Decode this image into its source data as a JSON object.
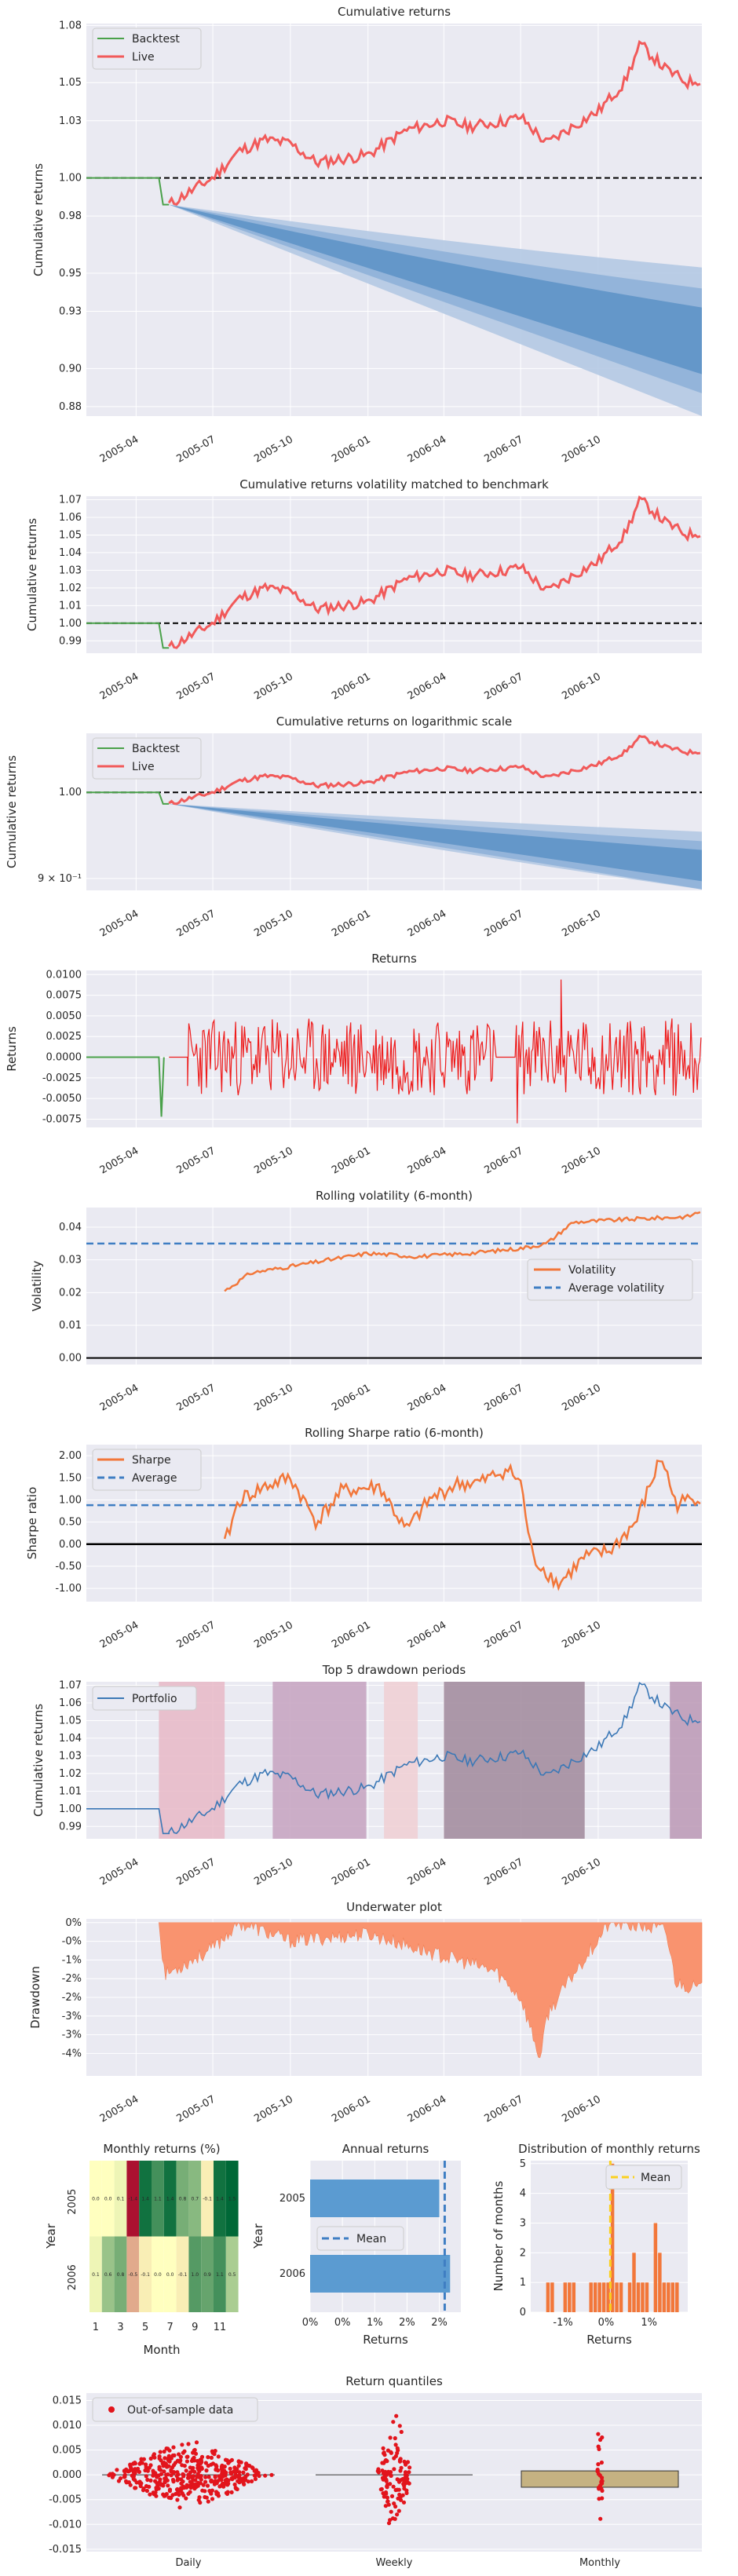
{
  "colors": {
    "axes_bg": "#eaeaf2",
    "grid": "#ffffff",
    "backtest": "#4aa14a",
    "live": "#f15a5a",
    "cone": "#4b86c0",
    "returns": "#ee1c1c",
    "orange": "#f2773a",
    "blue_dash": "#3f7ec3",
    "portfolio": "#3b78b6",
    "underwater": "#f9936f",
    "annual_bar": "#5b9bd1",
    "mean_gold": "#fbd020",
    "quantile_box": "#c5b282",
    "quantile_dots": "#e2141c"
  },
  "date_ticks": [
    "2005-04",
    "2005-07",
    "2005-10",
    "2006-01",
    "2006-04",
    "2006-07",
    "2006-10"
  ],
  "chart_data": [
    {
      "id": "cum",
      "type": "line",
      "title": "Cumulative returns",
      "ylabel": "Cumulative returns",
      "y_ticks": [
        "0.88",
        "0.90",
        "0.93",
        "0.95",
        "0.98",
        "1.00",
        "1.03",
        "1.05",
        "1.08"
      ],
      "ylim": [
        0.875,
        1.081
      ],
      "legend": [
        "Backtest",
        "Live"
      ],
      "legend_loc": "upper-left",
      "series": [
        {
          "name": "Backtest",
          "x": [
            "2005-02-01",
            "2005-04-28",
            "2005-05-03",
            "2005-05-10"
          ],
          "values": [
            1.0,
            1.0,
            0.986,
            0.986
          ]
        },
        {
          "name": "Live",
          "x": [
            "2005-05-10",
            "2005-06-01",
            "2005-07-01",
            "2005-08-01",
            "2005-09-01",
            "2005-10-01",
            "2005-11-01",
            "2006-01-01",
            "2006-02-15",
            "2006-04-01",
            "2006-05-01",
            "2006-06-15",
            "2006-07-01",
            "2006-08-01",
            "2006-09-01",
            "2006-10-01",
            "2006-11-01",
            "2006-11-20",
            "2006-12-20",
            "2007-01-15",
            "2007-02-01"
          ],
          "values": [
            0.986,
            0.992,
            1.0,
            1.014,
            1.02,
            1.018,
            1.008,
            1.012,
            1.025,
            1.03,
            1.027,
            1.03,
            1.032,
            1.018,
            1.027,
            1.035,
            1.05,
            1.07,
            1.057,
            1.05,
            1.052
          ]
        }
      ],
      "cone_start": "2005-05-10",
      "cone_end": "2007-02-01",
      "cone_bands_end": [
        [
          0.953,
          0.875
        ],
        [
          0.942,
          0.887
        ],
        [
          0.932,
          0.897
        ]
      ],
      "cone_center_end": 0.912
    },
    {
      "id": "vol_matched",
      "type": "line",
      "title": "Cumulative returns volatility matched to benchmark",
      "ylabel": "Cumulative returns",
      "y_ticks": [
        "0.99",
        "1.00",
        "1.01",
        "1.02",
        "1.03",
        "1.04",
        "1.05",
        "1.06",
        "1.07"
      ],
      "ylim": [
        0.983,
        1.072
      ],
      "series_ref": "cum"
    },
    {
      "id": "log",
      "type": "line",
      "title": "Cumulative returns on logarithmic scale",
      "ylabel": "Cumulative returns",
      "y_ticks": [
        "1.00",
        "9 × 10⁻¹"
      ],
      "ylim": [
        0.887,
        1.075
      ],
      "log": true,
      "legend": [
        "Backtest",
        "Live"
      ],
      "series_ref": "cum"
    },
    {
      "id": "returns",
      "type": "line",
      "title": "Returns",
      "ylabel": "Returns",
      "y_ticks": [
        "-0.0075",
        "-0.0050",
        "-0.0025",
        "0.0000",
        "0.0025",
        "0.0050",
        "0.0075",
        "0.0100"
      ],
      "ylim": [
        -0.0085,
        0.0105
      ],
      "amplitude": 0.0047,
      "dip": -0.0072,
      "min_extreme": -0.008,
      "max_extreme": 0.0094
    },
    {
      "id": "rolling_vol",
      "type": "line",
      "title": "Rolling volatility (6-month)",
      "ylabel": "Volatility",
      "y_ticks": [
        "0.00",
        "0.01",
        "0.02",
        "0.03",
        "0.04"
      ],
      "ylim": [
        -0.002,
        0.046
      ],
      "legend": [
        "Volatility",
        "Average volatility"
      ],
      "legend_loc": "center-right",
      "average": 0.035,
      "x": [
        "2005-07-15",
        "2005-08-15",
        "2005-10-01",
        "2006-01-01",
        "2006-03-01",
        "2006-05-01",
        "2006-07-01",
        "2006-08-01",
        "2006-09-01",
        "2006-11-15",
        "2007-01-15",
        "2007-02-01"
      ],
      "values": [
        0.0205,
        0.026,
        0.028,
        0.032,
        0.031,
        0.032,
        0.0335,
        0.035,
        0.0415,
        0.0425,
        0.0432,
        0.045
      ]
    },
    {
      "id": "rolling_sharpe",
      "type": "line",
      "title": "Rolling Sharpe ratio (6-month)",
      "ylabel": "Sharpe ratio",
      "y_ticks": [
        "-1.00",
        "-0.50",
        "0.00",
        "0.50",
        "1.00",
        "1.50",
        "2.00"
      ],
      "ylim": [
        -1.3,
        2.25
      ],
      "legend": [
        "Sharpe",
        "Average"
      ],
      "legend_loc": "upper-left",
      "average": 0.88,
      "x": [
        "2005-07-15",
        "2005-08-01",
        "2005-09-01",
        "2005-10-01",
        "2005-11-01",
        "2005-12-01",
        "2006-01-15",
        "2006-02-15",
        "2006-03-15",
        "2006-04-15",
        "2006-05-15",
        "2006-06-15",
        "2006-07-01",
        "2006-07-15",
        "2006-08-15",
        "2006-09-15",
        "2006-10-15",
        "2006-11-15",
        "2006-12-15",
        "2007-01-01",
        "2007-02-01"
      ],
      "values": [
        0.0,
        1.0,
        1.3,
        1.5,
        0.5,
        1.2,
        1.3,
        0.3,
        1.0,
        1.35,
        1.4,
        1.7,
        1.4,
        -0.3,
        -0.9,
        -0.3,
        -0.15,
        0.5,
        2.0,
        0.9,
        1.1
      ]
    },
    {
      "id": "drawdowns",
      "type": "line",
      "title": "Top 5 drawdown periods",
      "ylabel": "Cumulative returns",
      "y_ticks": [
        "0.99",
        "1.00",
        "1.01",
        "1.02",
        "1.03",
        "1.04",
        "1.05",
        "1.06",
        "1.07"
      ],
      "ylim": [
        0.983,
        1.072
      ],
      "legend": [
        "Portfolio"
      ],
      "legend_loc": "upper-left",
      "series_ref": "cum",
      "periods": [
        [
          "2005-04-28",
          "2005-07-15",
          "#e7b9c7"
        ],
        [
          "2005-09-10",
          "2005-12-30",
          "#c6a2bf"
        ],
        [
          "2006-01-20",
          "2006-03-01",
          "#f0cfd4"
        ],
        [
          "2006-04-01",
          "2006-09-15",
          "#a0889b"
        ],
        [
          "2006-12-25",
          "2007-02-01",
          "#bb98b5"
        ]
      ]
    },
    {
      "id": "underwater",
      "type": "area",
      "title": "Underwater plot",
      "ylabel": "Drawdown",
      "y_ticks": [
        "0%",
        "-0%",
        "-1%",
        "-2%",
        "-2%",
        "-3%",
        "-3%",
        "-4%"
      ],
      "ylim": [
        -4.1,
        0.1
      ],
      "x": [
        "2005-04-28",
        "2005-05-05",
        "2005-07-01",
        "2005-08-01",
        "2005-10-01",
        "2006-01-01",
        "2006-03-15",
        "2006-06-01",
        "2006-07-01",
        "2006-07-25",
        "2006-08-01",
        "2006-09-01",
        "2006-10-15",
        "2006-12-20",
        "2007-01-01",
        "2007-02-01"
      ],
      "values": [
        0,
        -1.4,
        -0.7,
        0,
        -0.5,
        -0.3,
        -0.8,
        -1.3,
        -2.0,
        -3.7,
        -2.5,
        -1.4,
        0,
        -0.2,
        -1.6,
        -1.8
      ]
    },
    {
      "id": "monthly_heatmap",
      "type": "heatmap",
      "title": "Monthly returns (%)",
      "xlabel": "Month",
      "ylabel": "Year",
      "x_ticks": [
        "1",
        "3",
        "5",
        "7",
        "9",
        "11"
      ],
      "rows": [
        "2005",
        "2006"
      ],
      "values": [
        [
          "0.0",
          "0.0",
          "0.1",
          "-1.4",
          "1.4",
          "1.1",
          "1.4",
          "0.8",
          "0.7",
          "-0.1",
          "1.4",
          "1.5"
        ],
        [
          "0.1",
          "0.6",
          "0.8",
          "-0.5",
          "-0.1",
          "0.0",
          "0.0",
          "-0.1",
          "1.0",
          "0.9",
          "1.1",
          "0.5"
        ]
      ]
    },
    {
      "id": "annual",
      "type": "bar",
      "title": "Annual returns",
      "xlabel": "Returns",
      "ylabel": "Year",
      "categories": [
        "2005",
        "2006"
      ],
      "values": [
        2.4,
        2.6
      ],
      "mean": 2.5,
      "x_ticks": [
        "0%",
        "0%",
        "1%",
        "2%",
        "2%"
      ],
      "legend": [
        "Mean"
      ]
    },
    {
      "id": "distribution",
      "type": "bar",
      "title": "Distribution of monthly returns",
      "xlabel": "Returns",
      "ylabel": "Number of months",
      "y_ticks": [
        "0",
        "1",
        "2",
        "3",
        "4",
        "5"
      ],
      "x_ticks": [
        "-1%",
        "0%",
        "1%"
      ],
      "legend": [
        "Mean"
      ],
      "mean": 0.1,
      "bins": [
        -1.5,
        -1.4,
        -1.3,
        -1.2,
        -1.1,
        -1.0,
        -0.9,
        -0.8,
        -0.7,
        -0.6,
        -0.5,
        -0.4,
        -0.3,
        -0.2,
        -0.1,
        0.0,
        0.1,
        0.2,
        0.3,
        0.4,
        0.5,
        0.6,
        0.7,
        0.8,
        0.9,
        1.0,
        1.1,
        1.2,
        1.3,
        1.4,
        1.5,
        1.6
      ],
      "counts": [
        0,
        1,
        1,
        0,
        0,
        1,
        1,
        1,
        0,
        0,
        0,
        1,
        1,
        1,
        1,
        1,
        5,
        1,
        1,
        0,
        1,
        2,
        1,
        1,
        1,
        0,
        3,
        2,
        1,
        1,
        1,
        1
      ]
    },
    {
      "id": "quantiles",
      "type": "scatter",
      "title": "Return quantiles",
      "y_ticks": [
        "-0.015",
        "-0.010",
        "-0.005",
        "0.000",
        "0.005",
        "0.010",
        "0.015"
      ],
      "ylim": [
        -0.0155,
        0.0165
      ],
      "categories": [
        "Daily",
        "Weekly",
        "Monthly"
      ],
      "legend": [
        "Out-of-sample data"
      ],
      "legend_loc": "upper-left",
      "spread": [
        0.0072,
        0.0138,
        0.0148
      ],
      "box": [
        [
          -0.0005,
          0.0005
        ],
        [
          0.0,
          0.0
        ],
        [
          -0.0025,
          0.0008
        ]
      ]
    }
  ]
}
